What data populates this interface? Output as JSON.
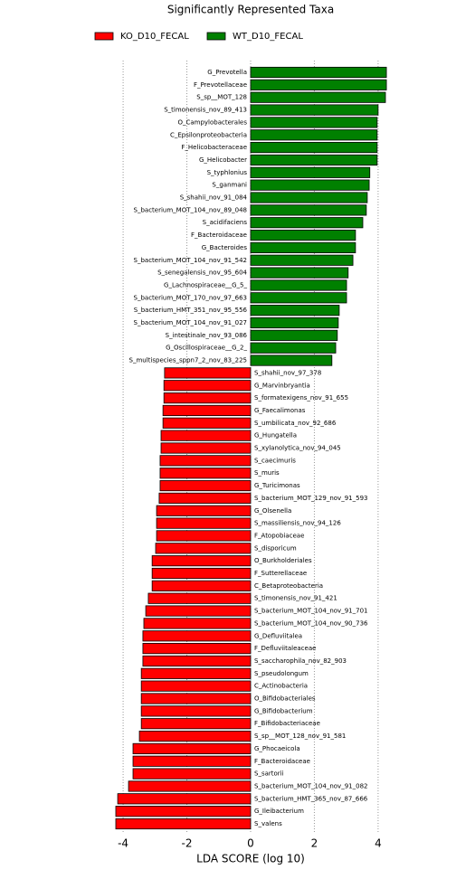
{
  "chart_data": {
    "type": "bar",
    "orientation": "horizontal",
    "title": "Significantly Represented Taxa",
    "x_label": "LDA SCORE (log 10)",
    "xlim": [
      -4.4,
      4.4
    ],
    "xticks": [
      -4,
      -2,
      0,
      2,
      4
    ],
    "grid": true,
    "legend": "top",
    "series": [
      {
        "name": "WT_D10_FECAL",
        "color": "#008000",
        "categories": [
          "G_Prevotella",
          "F_Prevotellaceae",
          "S_sp__MOT_128",
          "S_timonensis_nov_89_413",
          "O_Campylobacterales",
          "C_Epsilonproteobacteria",
          "F_Helicobacteraceae",
          "G_Helicobacter",
          "S_typhlonius",
          "S_ganmani",
          "S_shahii_nov_91_084",
          "S_bacterium_MOT_104_nov_89_048",
          "S_acidifaciens",
          "F_Bacteroidaceae",
          "G_Bacteroides",
          "S_bacterium_MOT_104_nov_91_542",
          "S_senegalensis_nov_95_604",
          "G_Lachnospiraceae__G_5_",
          "S_bacterium_MOT_170_nov_97_663",
          "S_bacterium_HMT_351_nov_95_556",
          "S_bacterium_MOT_104_nov_91_027",
          "S_intestinale_nov_93_086",
          "G_Oscillospiraceae__G_2_",
          "S_multispecies_sppn7_2_nov_83_225"
        ],
        "values": [
          4.26,
          4.26,
          4.23,
          4.0,
          3.97,
          3.97,
          3.97,
          3.97,
          3.74,
          3.72,
          3.66,
          3.63,
          3.52,
          3.29,
          3.29,
          3.21,
          3.06,
          3.01,
          3.01,
          2.78,
          2.75,
          2.72,
          2.67,
          2.55
        ]
      },
      {
        "name": "KO_D10_FECAL",
        "color": "#ff0000",
        "categories": [
          "S_shahii_nov_97_378",
          "G_Marvinbryantia",
          "S_formatexigens_nov_91_655",
          "G_Faecalimonas",
          "S_umbilicata_nov_92_686",
          "G_Hungatella",
          "S_xylanolytica_nov_94_045",
          "S_caecimuris",
          "S_muris",
          "G_Turicimonas",
          "S_bacterium_MOT_129_nov_91_593",
          "G_Olsenella",
          "S_massiliensis_nov_94_126",
          "F_Atopobiaceae",
          "S_disporicum",
          "O_Burkholderiales",
          "F_Sutterellaceae",
          "C_Betaproteobacteria",
          "S_timonensis_nov_91_421",
          "S_bacterium_MOT_104_nov_91_701",
          "S_bacterium_MOT_104_nov_90_736",
          "G_Defluviitalea",
          "F_Defluviitaleaceae",
          "S_saccharophila_nov_82_903",
          "S_pseudolongum",
          "C_Actinobacteria",
          "O_Bifidobacteriales",
          "G_Bifidobacterium",
          "F_Bifidobacteriaceae",
          "S_sp__MOT_128_nov_91_581",
          "G_Phocaeicola",
          "F_Bacteroidaceae",
          "S_sartorii",
          "S_bacterium_MOT_104_nov_91_082",
          "S_bacterium_HMT_365_nov_87_666",
          "G_Ileibacterium",
          "S_valens"
        ],
        "values": [
          -2.7,
          -2.72,
          -2.72,
          -2.75,
          -2.75,
          -2.81,
          -2.81,
          -2.84,
          -2.84,
          -2.84,
          -2.87,
          -2.95,
          -2.95,
          -2.95,
          -2.98,
          -3.09,
          -3.09,
          -3.09,
          -3.21,
          -3.29,
          -3.35,
          -3.38,
          -3.38,
          -3.38,
          -3.43,
          -3.43,
          -3.43,
          -3.43,
          -3.43,
          -3.49,
          -3.69,
          -3.69,
          -3.69,
          -3.83,
          -4.17,
          -4.23,
          -4.23
        ]
      }
    ]
  }
}
